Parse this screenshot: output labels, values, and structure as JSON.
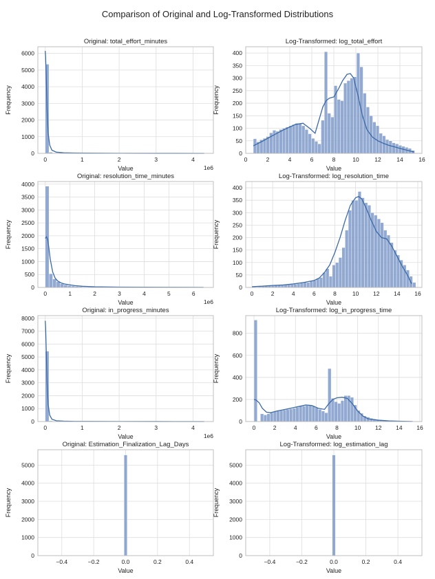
{
  "figure": {
    "suptitle": "Comparison of Original and Log-Transformed Distributions",
    "colors": {
      "bar": "#7f9bc9",
      "kde": "#3b69a7",
      "grid": "#dddddd",
      "axes_edge": "#b8b8b8",
      "text": "#222222"
    }
  },
  "chart_data": [
    {
      "type": "bar",
      "title": "Original: total_effort_minutes",
      "xlabel": "Value",
      "ylabel": "Frequency",
      "offset_text": "1e6",
      "xlim": [
        -0.2,
        4.55
      ],
      "ylim": [
        0,
        6400
      ],
      "xticks": [
        0,
        1,
        2,
        3,
        4
      ],
      "xtick_labels": [
        "0",
        "1",
        "2",
        "3",
        "4"
      ],
      "yticks": [
        0,
        1000,
        2000,
        3000,
        4000,
        5000,
        6000
      ],
      "bin_start": 0,
      "bin_width": 0.1,
      "values": [
        5350,
        65,
        22,
        10,
        6,
        4,
        3,
        2,
        2,
        1,
        1,
        1,
        1,
        1,
        0,
        0,
        0,
        0,
        0,
        0,
        0,
        0,
        0,
        0,
        0,
        0,
        0,
        0,
        0,
        0,
        0,
        0,
        0,
        0,
        0,
        0,
        0,
        0,
        0,
        0,
        0,
        0,
        1
      ],
      "kde": {
        "x": [
          0,
          0.01,
          0.03,
          0.05,
          0.08,
          0.12,
          0.18,
          0.3,
          0.5,
          0.8,
          1.2,
          2,
          3,
          4.3
        ],
        "y": [
          6150,
          5800,
          4300,
          2600,
          1200,
          500,
          190,
          70,
          35,
          20,
          12,
          6,
          3,
          1
        ]
      }
    },
    {
      "type": "bar",
      "title": "Log-Transformed: log_total_effort",
      "xlabel": "Value",
      "ylabel": "Frequency",
      "xlim": [
        0,
        16
      ],
      "ylim": [
        0,
        425
      ],
      "xticks": [
        0,
        2,
        4,
        6,
        8,
        10,
        12,
        14,
        16
      ],
      "xtick_labels": [
        "0",
        "2",
        "4",
        "6",
        "8",
        "10",
        "12",
        "14",
        "16"
      ],
      "yticks": [
        0,
        50,
        100,
        150,
        200,
        250,
        300,
        350,
        400
      ],
      "bin_start": 0.69,
      "bin_width": 0.293,
      "values": [
        58,
        46,
        54,
        60,
        67,
        82,
        92,
        88,
        95,
        100,
        105,
        110,
        115,
        120,
        118,
        110,
        95,
        78,
        60,
        48,
        38,
        132,
        405,
        160,
        145,
        270,
        215,
        210,
        280,
        290,
        300,
        305,
        400,
        345,
        240,
        185,
        150,
        125,
        110,
        80,
        70,
        55,
        50,
        42,
        38,
        32,
        28,
        24,
        20,
        12
      ],
      "kde": {
        "x": [
          0.69,
          1.5,
          2.5,
          3.5,
          4.5,
          5.2,
          5.8,
          6.3,
          6.7,
          7,
          7.3,
          7.6,
          8,
          8.4,
          8.8,
          9.2,
          9.5,
          9.8,
          10.2,
          10.6,
          11,
          11.5,
          12,
          12.5,
          13,
          13.5,
          14,
          14.5,
          15.3
        ],
        "y": [
          30,
          48,
          72,
          95,
          115,
          120,
          100,
          80,
          140,
          185,
          210,
          220,
          225,
          255,
          290,
          315,
          318,
          300,
          230,
          150,
          95,
          65,
          50,
          40,
          32,
          26,
          20,
          14,
          5
        ]
      }
    },
    {
      "type": "bar",
      "title": "Original: resolution_time_minutes",
      "xlabel": "Value",
      "ylabel": "Frequency",
      "offset_text": "1e6",
      "xlim": [
        -0.3,
        6.8
      ],
      "ylim": [
        0,
        4100
      ],
      "xticks": [
        0,
        1,
        2,
        3,
        4,
        5,
        6
      ],
      "xtick_labels": [
        "0",
        "1",
        "2",
        "3",
        "4",
        "5",
        "6"
      ],
      "yticks": [
        0,
        500,
        1000,
        1500,
        2000,
        2500,
        3000,
        3500,
        4000
      ],
      "bin_start": 0,
      "bin_width": 0.15,
      "values": [
        3920,
        530,
        330,
        220,
        140,
        100,
        75,
        55,
        40,
        30,
        22,
        18,
        14,
        10,
        8,
        6,
        5,
        4,
        3,
        3,
        2,
        2,
        2,
        1,
        1,
        1,
        1,
        1,
        1,
        1,
        1,
        1,
        1,
        1,
        1,
        1,
        1,
        1,
        1,
        1,
        1,
        1,
        1
      ],
      "kde": {
        "x": [
          0,
          0.05,
          0.1,
          0.15,
          0.2,
          0.3,
          0.4,
          0.5,
          0.65,
          0.8,
          1,
          1.2,
          1.5,
          2,
          3,
          4,
          5,
          6.4
        ],
        "y": [
          1900,
          1960,
          1850,
          1500,
          1100,
          600,
          360,
          250,
          170,
          130,
          100,
          70,
          45,
          25,
          12,
          8,
          5,
          3
        ]
      }
    },
    {
      "type": "bar",
      "title": "Log-Transformed: log_resolution_time",
      "xlabel": "Value",
      "ylabel": "Frequency",
      "xlim": [
        -0.6,
        16.4
      ],
      "ylim": [
        0,
        425
      ],
      "xticks": [
        0,
        2,
        4,
        6,
        8,
        10,
        12,
        14,
        16
      ],
      "xtick_labels": [
        "0",
        "2",
        "4",
        "6",
        "8",
        "10",
        "12",
        "14",
        "16"
      ],
      "yticks": [
        0,
        50,
        100,
        150,
        200,
        250,
        300,
        350,
        400
      ],
      "bin_start": 0,
      "bin_width": 0.31,
      "values": [
        3,
        2,
        3,
        4,
        5,
        6,
        7,
        8,
        9,
        9,
        10,
        11,
        12,
        13,
        15,
        18,
        22,
        20,
        25,
        28,
        35,
        40,
        60,
        75,
        45,
        90,
        100,
        120,
        160,
        230,
        310,
        350,
        350,
        385,
        360,
        340,
        330,
        300,
        290,
        275,
        260,
        230,
        210,
        180,
        150,
        130,
        110,
        90,
        70,
        45,
        20
      ],
      "kde": {
        "x": [
          0,
          1,
          2,
          3,
          4,
          5,
          6,
          6.5,
          7,
          7.5,
          8,
          8.5,
          9,
          9.5,
          10,
          10.3,
          10.6,
          11,
          11.5,
          12,
          12.5,
          13,
          13.5,
          14,
          14.5,
          15,
          15.4
        ],
        "y": [
          3,
          5,
          8,
          10,
          14,
          20,
          28,
          38,
          60,
          90,
          140,
          200,
          270,
          330,
          360,
          365,
          355,
          320,
          270,
          225,
          200,
          195,
          165,
          125,
          85,
          50,
          15
        ]
      }
    },
    {
      "type": "bar",
      "title": "Original: in_progress_minutes",
      "xlabel": "Value",
      "ylabel": "Frequency",
      "offset_text": "1e6",
      "xlim": [
        -0.2,
        4.55
      ],
      "ylim": [
        0,
        8200
      ],
      "xticks": [
        0,
        1,
        2,
        3,
        4
      ],
      "xtick_labels": [
        "0",
        "1",
        "2",
        "3",
        "4"
      ],
      "yticks": [
        0,
        1000,
        2000,
        3000,
        4000,
        5000,
        6000,
        7000,
        8000
      ],
      "bin_start": 0,
      "bin_width": 0.1,
      "values": [
        5450,
        55,
        18,
        8,
        5,
        3,
        2,
        2,
        1,
        1,
        1,
        1,
        1,
        0,
        0,
        0,
        0,
        0,
        0,
        0,
        0,
        0,
        0,
        0,
        0,
        0,
        0,
        0,
        0,
        0,
        0,
        0,
        0,
        0,
        0,
        0,
        0,
        0,
        0,
        0,
        0,
        0,
        1
      ],
      "kde": {
        "x": [
          0,
          0.01,
          0.03,
          0.05,
          0.08,
          0.12,
          0.18,
          0.3,
          0.5,
          0.8,
          1.2,
          2,
          3,
          4.3
        ],
        "y": [
          7800,
          7300,
          5200,
          3000,
          1300,
          500,
          180,
          60,
          30,
          15,
          10,
          5,
          2,
          1
        ]
      }
    },
    {
      "type": "bar",
      "title": "Log-Transformed: log_in_progress_time",
      "xlabel": "Value",
      "ylabel": "Frequency",
      "xlim": [
        -0.8,
        16.2
      ],
      "ylim": [
        0,
        960
      ],
      "xticks": [
        0,
        2,
        4,
        6,
        8,
        10,
        12,
        14,
        16
      ],
      "xtick_labels": [
        "0",
        "2",
        "4",
        "6",
        "8",
        "10",
        "12",
        "14",
        "16"
      ],
      "yticks": [
        0,
        200,
        400,
        600,
        800
      ],
      "bin_start": 0,
      "bin_width": 0.31,
      "values": [
        920,
        0,
        70,
        60,
        70,
        80,
        90,
        95,
        100,
        105,
        110,
        115,
        120,
        130,
        140,
        140,
        145,
        150,
        140,
        125,
        110,
        95,
        80,
        480,
        210,
        180,
        165,
        190,
        235,
        235,
        220,
        150,
        100,
        75,
        50,
        40,
        30,
        22,
        16,
        12,
        10,
        8,
        6,
        5,
        4,
        4,
        3,
        3,
        2,
        2
      ],
      "kde": {
        "x": [
          0,
          0.2,
          0.5,
          0.8,
          1.2,
          1.6,
          2.2,
          3,
          4,
          5,
          5.6,
          6.2,
          6.8,
          7.2,
          7.6,
          8,
          8.5,
          9,
          9.5,
          10,
          10.5,
          11,
          12,
          13,
          14,
          15.3
        ],
        "y": [
          200,
          195,
          170,
          120,
          85,
          80,
          95,
          110,
          130,
          150,
          145,
          120,
          110,
          160,
          200,
          215,
          220,
          210,
          160,
          95,
          50,
          25,
          12,
          6,
          3,
          1
        ]
      }
    },
    {
      "type": "bar",
      "title": "Original: Estimation_Finalization_Lag_Days",
      "xlabel": "Value",
      "ylabel": "Frequency",
      "xlim": [
        -0.55,
        0.55
      ],
      "ylim": [
        0,
        5850
      ],
      "xticks": [
        -0.4,
        -0.2,
        0,
        0.2,
        0.4
      ],
      "xtick_labels": [
        "−0.4",
        "−0.2",
        "0.0",
        "0.2",
        "0.4"
      ],
      "yticks": [
        0,
        1000,
        2000,
        3000,
        4000,
        5000
      ],
      "bin_start": -0.01,
      "bin_width": 0.02,
      "values": [
        5560
      ]
    },
    {
      "type": "bar",
      "title": "Log-Transformed: log_estimation_lag",
      "xlabel": "Value",
      "ylabel": "Frequency",
      "xlim": [
        -0.55,
        0.55
      ],
      "ylim": [
        0,
        5850
      ],
      "xticks": [
        -0.4,
        -0.2,
        0,
        0.2,
        0.4
      ],
      "xtick_labels": [
        "−0.4",
        "−0.2",
        "0.0",
        "0.2",
        "0.4"
      ],
      "yticks": [
        0,
        1000,
        2000,
        3000,
        4000,
        5000
      ],
      "bin_start": -0.01,
      "bin_width": 0.02,
      "values": [
        5560
      ]
    }
  ]
}
